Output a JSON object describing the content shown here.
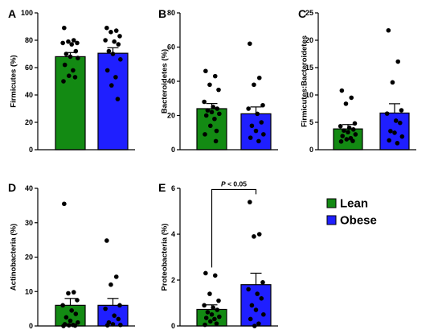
{
  "colors": {
    "lean": "#138a13",
    "obese": "#1f1fff"
  },
  "legend": [
    {
      "label": "Lean",
      "color": "#138a13"
    },
    {
      "label": "Obese",
      "color": "#1f1fff"
    }
  ],
  "chart_data": [
    {
      "panel": "A",
      "type": "bar",
      "ylabel": "Firmicutes (%)",
      "ylim": [
        0,
        100
      ],
      "yticks": [
        "0",
        "20",
        "40",
        "60",
        "80",
        "100"
      ],
      "ytick_values": [
        0,
        20,
        40,
        60,
        80,
        100
      ],
      "categories": [
        "Lean",
        "Obese"
      ],
      "values": [
        68,
        70.5
      ],
      "sem": [
        3,
        4
      ],
      "points": [
        [
          89,
          80,
          79,
          78,
          78,
          77,
          72,
          70,
          68,
          67,
          62,
          58,
          54,
          53,
          50
        ],
        [
          89,
          87,
          86,
          83,
          80,
          79,
          77,
          72,
          70,
          66,
          58,
          53,
          47,
          37
        ]
      ]
    },
    {
      "panel": "B",
      "type": "bar",
      "ylabel": "Bacteroidetes (%)",
      "ylim": [
        0,
        80
      ],
      "yticks": [
        "0",
        "20",
        "40",
        "60",
        "80"
      ],
      "ytick_values": [
        0,
        20,
        40,
        60,
        80
      ],
      "categories": [
        "Lean",
        "Obese"
      ],
      "values": [
        24,
        21
      ],
      "sem": [
        3,
        4
      ],
      "points": [
        [
          46,
          43,
          38,
          35,
          28,
          25,
          24,
          23,
          22,
          21,
          20,
          18,
          14,
          11,
          9,
          5
        ],
        [
          62,
          42,
          38,
          26,
          24,
          21,
          16,
          14,
          11,
          9,
          7,
          5
        ]
      ]
    },
    {
      "panel": "C",
      "type": "bar",
      "ylabel": "Firmicutes:Bacteroidetes",
      "ylim": [
        0,
        25
      ],
      "yticks": [
        "0",
        "5",
        "10",
        "15",
        "20",
        "25"
      ],
      "ytick_values": [
        0,
        5,
        10,
        15,
        20,
        25
      ],
      "categories": [
        "Lean",
        "Obese"
      ],
      "values": [
        3.8,
        6.7
      ],
      "sem": [
        0.8,
        1.7
      ],
      "points": [
        [
          10.8,
          9.5,
          8.4,
          4.8,
          4.3,
          4.0,
          3.7,
          3.5,
          3.2,
          2.8,
          2.5,
          2.1,
          1.9,
          1.6,
          1.5
        ],
        [
          21.8,
          16.1,
          12.3,
          7.2,
          6.6,
          5.3,
          4.9,
          3.4,
          3.1,
          2.4,
          1.7,
          1.2
        ]
      ]
    },
    {
      "panel": "D",
      "type": "bar",
      "ylabel": "Actinobacteria (%)",
      "ylim": [
        0,
        40
      ],
      "yticks": [
        "0",
        "10",
        "20",
        "30",
        "40"
      ],
      "ytick_values": [
        0,
        10,
        20,
        30,
        40
      ],
      "categories": [
        "Lean",
        "Obese"
      ],
      "values": [
        6,
        6
      ],
      "sem": [
        2,
        2
      ],
      "points": [
        [
          35.5,
          9.8,
          9.5,
          7.5,
          6.0,
          4.5,
          3.5,
          2.5,
          1.5,
          1.0,
          0.5,
          0.3,
          0.2,
          0.1,
          0.0
        ],
        [
          24.8,
          14.3,
          12.0,
          6.0,
          5.0,
          3.0,
          2.0,
          1.0,
          0.5,
          0.3,
          0.2
        ]
      ]
    },
    {
      "panel": "E",
      "type": "bar",
      "ylabel": "Proteobacteria (%)",
      "ylim": [
        0,
        6
      ],
      "yticks": [
        "0",
        "2",
        "4",
        "6"
      ],
      "ytick_values": [
        0,
        2,
        4,
        6
      ],
      "categories": [
        "Lean",
        "Obese"
      ],
      "values": [
        0.72,
        1.8
      ],
      "sem": [
        0.2,
        0.5
      ],
      "points": [
        [
          2.3,
          2.2,
          1.4,
          1.1,
          0.9,
          0.8,
          0.7,
          0.6,
          0.5,
          0.4,
          0.35,
          0.3,
          0.2,
          0.1,
          0.05
        ],
        [
          5.4,
          4.0,
          3.9,
          1.9,
          1.6,
          1.4,
          1.2,
          0.9,
          0.7,
          0.5,
          0.3,
          0.1,
          0.0
        ]
      ],
      "annotation": "P < 0.05"
    }
  ]
}
